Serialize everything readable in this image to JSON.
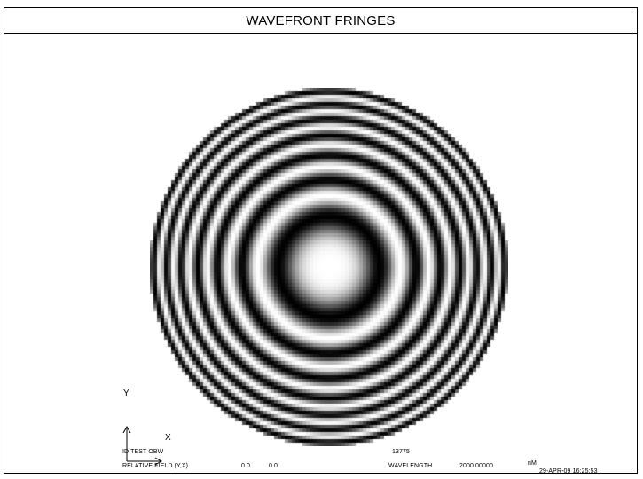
{
  "window": {
    "title": "WAVEFRONT FRINGES"
  },
  "plot": {
    "type": "interferogram",
    "colors": {
      "background": "#ffffff",
      "fringe_dark": "#000000",
      "fringe_light": "#ffffff"
    }
  },
  "axes": {
    "y_label": "Y",
    "x_label": "X"
  },
  "footer": {
    "id_text": "ID TEST OBW",
    "id_value": "13775",
    "field_label": "RELATIVE FIELD (Y,X)",
    "field_y": "0.0",
    "field_x": "0.0",
    "wavelength_label": "WAVELENGTH",
    "wavelength_value": "2000.00000",
    "wavelength_unit": "nM",
    "timestamp": "29-APR-09  16:25:53"
  }
}
